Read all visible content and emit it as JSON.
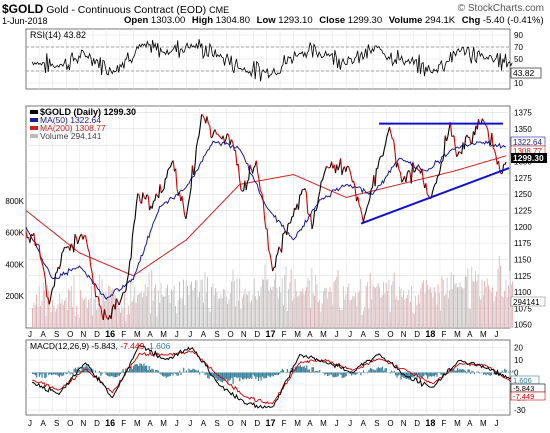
{
  "header": {
    "symbol": "$GOLD",
    "name": "Gold - Continuous Contract (EOD)",
    "exchange": "CME",
    "date": "1-Jun-2018",
    "open_label": "Open",
    "open_value": "1303.00",
    "high_label": "High",
    "high_value": "1304.80",
    "low_label": "Low",
    "low_value": "1293.10",
    "close_label": "Close",
    "close_value": "1299.30",
    "volume_label": "Volume",
    "volume_value": "294.1K",
    "chg_label": "Chg",
    "chg_value": "-5.40 (-0.41%)",
    "watermark": "© StockCharts.com"
  },
  "colors": {
    "price": "#000000",
    "up_bar": "#000000",
    "down_bar": "#cc0000",
    "ma50": "#1a1a9a",
    "ma200": "#cc2222",
    "trendline": "#1010d0",
    "volume_up": "#c8c8c8",
    "volume_down": "#e4a8a8",
    "macd_hist": "#3a7f9a",
    "price_tag": "#000000"
  },
  "chart_data": [
    {
      "type": "line",
      "panel": "RSI",
      "label": "RSI(14) 43.82",
      "current_value": 43.82,
      "current_label": "43.82",
      "y_ticks": [
        "90",
        "70",
        "50",
        "30",
        "10"
      ],
      "ylim": [
        0,
        100
      ],
      "reference_lines": [
        70,
        30
      ],
      "x": [
        "2015-06",
        "2015-08",
        "2015-10",
        "2015-12",
        "2016-02",
        "2016-04",
        "2016-06",
        "2016-08",
        "2016-10",
        "2016-12",
        "2017-02",
        "2017-04",
        "2017-06",
        "2017-08",
        "2017-10",
        "2017-12",
        "2018-02",
        "2018-04",
        "2018-06"
      ],
      "values": [
        45,
        38,
        58,
        30,
        70,
        62,
        75,
        55,
        32,
        28,
        62,
        58,
        47,
        68,
        45,
        30,
        65,
        52,
        44
      ]
    },
    {
      "type": "line",
      "panel": "price",
      "label": "$GOLD (Daily) 1299.30",
      "y_ticks": [
        "1375",
        "1350",
        "1325",
        "1300",
        "1275",
        "1250",
        "1225",
        "1200",
        "1175",
        "1150",
        "1125",
        "1100",
        "1075",
        "1050"
      ],
      "ylim": [
        1045,
        1385
      ],
      "legend_position": "top-left",
      "series": [
        {
          "name": "$GOLD (Daily) 1299.30",
          "current_label": "1299.30",
          "x": [
            "2015-06-01",
            "2015-07-01",
            "2015-07-24",
            "2015-08-25",
            "2015-10-15",
            "2015-11-10",
            "2015-12-03",
            "2016-01-15",
            "2016-02-11",
            "2016-03-15",
            "2016-05-02",
            "2016-05-31",
            "2016-07-06",
            "2016-08-15",
            "2016-09-15",
            "2016-10-07",
            "2016-11-08",
            "2016-12-15",
            "2017-01-25",
            "2017-02-27",
            "2017-03-15",
            "2017-04-17",
            "2017-06-06",
            "2017-07-10",
            "2017-09-08",
            "2017-10-06",
            "2017-11-15",
            "2017-12-12",
            "2018-01-25",
            "2018-02-08",
            "2018-04-11",
            "2018-05-21",
            "2018-06-01"
          ],
          "values": [
            1190,
            1170,
            1080,
            1165,
            1185,
            1090,
            1060,
            1100,
            1250,
            1230,
            1300,
            1210,
            1370,
            1340,
            1330,
            1255,
            1300,
            1130,
            1210,
            1260,
            1200,
            1295,
            1290,
            1210,
            1350,
            1270,
            1290,
            1240,
            1360,
            1310,
            1365,
            1285,
            1299.3
          ]
        },
        {
          "name": "MA(50) 1322.64",
          "current_label": "1322.64",
          "x": [
            "2015-06-01",
            "2015-08-01",
            "2015-10-01",
            "2015-12-01",
            "2016-02-01",
            "2016-04-01",
            "2016-06-01",
            "2016-08-01",
            "2016-10-01",
            "2016-12-01",
            "2017-02-01",
            "2017-04-01",
            "2017-06-01",
            "2017-08-01",
            "2017-10-01",
            "2017-12-01",
            "2018-02-01",
            "2018-04-01",
            "2018-06-01"
          ],
          "values": [
            1200,
            1120,
            1140,
            1090,
            1120,
            1230,
            1260,
            1330,
            1320,
            1230,
            1180,
            1240,
            1265,
            1250,
            1305,
            1285,
            1320,
            1330,
            1322.64
          ]
        },
        {
          "name": "MA(200) 1308.77",
          "current_label": "1308.77",
          "x": [
            "2015-06-01",
            "2015-10-01",
            "2016-02-01",
            "2016-06-01",
            "2016-10-01",
            "2017-02-01",
            "2017-06-01",
            "2017-10-01",
            "2018-02-01",
            "2018-06-01"
          ],
          "values": [
            1225,
            1160,
            1125,
            1180,
            1265,
            1280,
            1245,
            1265,
            1285,
            1308.77
          ]
        }
      ],
      "trendlines": [
        {
          "x": [
            "2017-08-15",
            "2018-05-25"
          ],
          "values": [
            1358,
            1358
          ]
        },
        {
          "x": [
            "2017-07-05",
            "2018-06-08"
          ],
          "values": [
            1205,
            1290
          ]
        }
      ]
    },
    {
      "type": "bar",
      "panel": "volume",
      "label": "Volume 294,141",
      "current_label": "294141",
      "y_ticks": [
        "800K",
        "600K",
        "400K",
        "200K"
      ],
      "ylim": [
        0,
        900000
      ],
      "x": [
        "2015-06",
        "2015-08",
        "2015-10",
        "2015-12",
        "2016-02",
        "2016-04",
        "2016-06",
        "2016-08",
        "2016-10",
        "2016-12",
        "2017-02",
        "2017-04",
        "2017-06",
        "2017-08",
        "2017-10",
        "2017-12",
        "2018-02",
        "2018-04",
        "2018-06"
      ],
      "values": [
        150000,
        180000,
        160000,
        230000,
        200000,
        230000,
        270000,
        210000,
        220000,
        280000,
        230000,
        210000,
        200000,
        240000,
        220000,
        230000,
        260000,
        270000,
        294141
      ]
    },
    {
      "type": "line",
      "panel": "MACD",
      "label": "MACD(12,26,9) -5.843, -7.449, 1.606",
      "y_ticks": [
        "20",
        "10",
        "0",
        "-10",
        "-20",
        "-30"
      ],
      "ylim": [
        -34,
        26
      ],
      "series": [
        {
          "name": "MACD(12,26,9) -5.843",
          "current_label": "-5.843",
          "x": [
            "2015-06",
            "2015-08",
            "2015-10",
            "2015-12",
            "2016-02",
            "2016-04",
            "2016-06",
            "2016-08",
            "2016-10",
            "2016-12",
            "2017-02",
            "2017-04",
            "2017-06",
            "2017-08",
            "2017-10",
            "2017-12",
            "2018-02",
            "2018-04",
            "2018-06"
          ],
          "values": [
            -8,
            -17,
            8,
            -20,
            22,
            10,
            20,
            -10,
            -25,
            -28,
            14,
            8,
            0,
            15,
            -3,
            -12,
            10,
            4,
            -5.843
          ]
        },
        {
          "name": "-7.449",
          "current_label": "-7.449",
          "x": [
            "2015-06",
            "2015-08",
            "2015-10",
            "2015-12",
            "2016-02",
            "2016-04",
            "2016-06",
            "2016-08",
            "2016-10",
            "2016-12",
            "2017-02",
            "2017-04",
            "2017-06",
            "2017-08",
            "2017-10",
            "2017-12",
            "2018-02",
            "2018-04",
            "2018-06"
          ],
          "values": [
            -6,
            -14,
            3,
            -16,
            15,
            14,
            17,
            -3,
            -20,
            -25,
            8,
            10,
            2,
            11,
            2,
            -9,
            7,
            6,
            -7.449
          ]
        },
        {
          "name": "1.606",
          "current_label": "1.606",
          "x": [
            "2015-06",
            "2015-08",
            "2015-10",
            "2015-12",
            "2016-02",
            "2016-04",
            "2016-06",
            "2016-08",
            "2016-10",
            "2016-12",
            "2017-02",
            "2017-04",
            "2017-06",
            "2017-08",
            "2017-10",
            "2017-12",
            "2018-02",
            "2018-04",
            "2018-06"
          ],
          "values": [
            -2,
            -3,
            5,
            -4,
            7,
            -4,
            3,
            -7,
            -5,
            -3,
            6,
            -2,
            -2,
            4,
            -5,
            -3,
            3,
            -2,
            1.606
          ]
        }
      ]
    }
  ],
  "x_axis": {
    "month_ticks": [
      "J",
      "A",
      "S",
      "O",
      "N",
      "D",
      "16",
      "F",
      "M",
      "A",
      "M",
      "J",
      "J",
      "A",
      "S",
      "O",
      "N",
      "D",
      "17",
      "F",
      "M",
      "A",
      "M",
      "J",
      "J",
      "A",
      "S",
      "O",
      "N",
      "D",
      "18",
      "F",
      "M",
      "A",
      "M",
      "J"
    ]
  }
}
